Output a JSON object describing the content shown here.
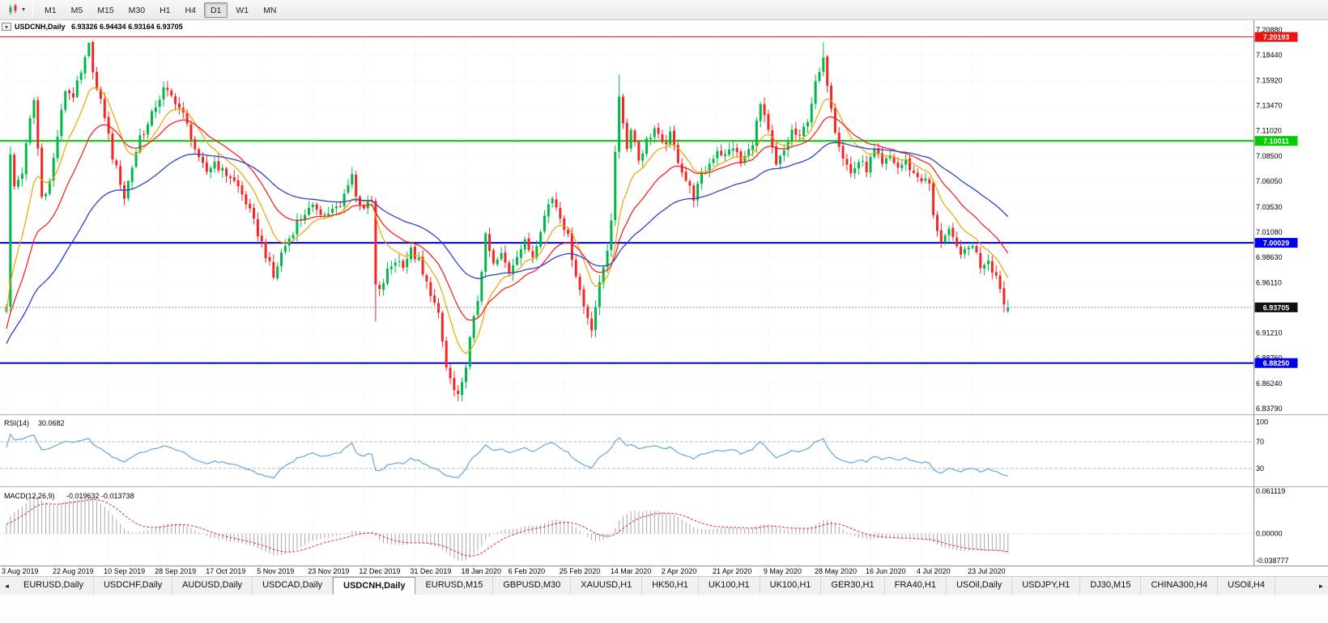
{
  "toolbar": {
    "caret": "▾",
    "timeframes": [
      {
        "label": "M1",
        "active": false
      },
      {
        "label": "M5",
        "active": false
      },
      {
        "label": "M15",
        "active": false
      },
      {
        "label": "M30",
        "active": false
      },
      {
        "label": "H1",
        "active": false
      },
      {
        "label": "H4",
        "active": false
      },
      {
        "label": "D1",
        "active": true
      },
      {
        "label": "W1",
        "active": false
      },
      {
        "label": "MN",
        "active": false
      }
    ]
  },
  "chart_header": {
    "collapse_glyph": "▼",
    "symbol": "USDCNH,Daily",
    "ohlc": "6.93326 6.94434 6.93164 6.93705"
  },
  "chart_data": {
    "type": "candlestick",
    "symbol": "USDCNH",
    "timeframe": "Daily",
    "last_open": "6.93326",
    "last_high": "6.94434",
    "last_low": "6.93164",
    "last_close": "6.93705",
    "y_axis_top": 7.2088,
    "y_axis_bottom": 6.8379,
    "price_axis_labels": [
      "7.20880",
      "7.18440",
      "7.15920",
      "7.13470",
      "7.11020",
      "7.08500",
      "7.06050",
      "7.03530",
      "7.01080",
      "6.98630",
      "6.96110",
      "6.93660",
      "6.91210",
      "6.88760",
      "6.86240",
      "6.83790"
    ],
    "date_labels": [
      "3 Aug 2019",
      "22 Aug 2019",
      "10 Sep 2019",
      "28 Sep 2019",
      "17 Oct 2019",
      "5 Nov 2019",
      "23 Nov 2019",
      "12 Dec 2019",
      "31 Dec 2019",
      "18 Jan 2020",
      "6 Feb 2020",
      "25 Feb 2020",
      "14 Mar 2020",
      "2 Apr 2020",
      "21 Apr 2020",
      "9 May 2020",
      "28 May 2020",
      "16 Jun 2020",
      "4 Jul 2020",
      "23 Jul 2020"
    ],
    "levels": [
      {
        "label": "7.20193",
        "value": 7.20193,
        "color": "#ee1111",
        "width": 1
      },
      {
        "label": "7.10011",
        "value": 7.10011,
        "color": "#00cc00",
        "width": 2
      },
      {
        "label": "7.00029",
        "value": 7.00029,
        "color": "#0000ee",
        "width": 2
      },
      {
        "label": "6.88250",
        "value": 6.8825,
        "color": "#0000ee",
        "width": 2
      }
    ],
    "current_price": {
      "label": "6.93705",
      "value": 6.93705,
      "line_color": "#9a9a9a",
      "box_color": "#101010"
    },
    "candle_count": 256,
    "colors": {
      "up": "#00b84a",
      "up_stroke": "#009a3c",
      "down": "#f42525",
      "down_stroke": "#d41f1f"
    },
    "moving_averages": [
      {
        "name": "fast",
        "period": 10,
        "color": "#f0a200"
      },
      {
        "name": "mid",
        "period": 21,
        "color": "#ff1414"
      },
      {
        "name": "slow",
        "period": 48,
        "color": "#2e43c8"
      }
    ],
    "close_anchors": [
      [
        0,
        6.94
      ],
      [
        1,
        7.085
      ],
      [
        2,
        7.055
      ],
      [
        4,
        7.07
      ],
      [
        6,
        7.12
      ],
      [
        7,
        7.14
      ],
      [
        9,
        7.045
      ],
      [
        11,
        7.06
      ],
      [
        13,
        7.105
      ],
      [
        15,
        7.15
      ],
      [
        17,
        7.145
      ],
      [
        19,
        7.165
      ],
      [
        21,
        7.193
      ],
      [
        23,
        7.15
      ],
      [
        25,
        7.125
      ],
      [
        27,
        7.085
      ],
      [
        29,
        7.06
      ],
      [
        30,
        7.045
      ],
      [
        32,
        7.075
      ],
      [
        34,
        7.105
      ],
      [
        36,
        7.115
      ],
      [
        38,
        7.135
      ],
      [
        40,
        7.15
      ],
      [
        43,
        7.14
      ],
      [
        45,
        7.125
      ],
      [
        47,
        7.105
      ],
      [
        49,
        7.08
      ],
      [
        51,
        7.07
      ],
      [
        53,
        7.08
      ],
      [
        55,
        7.07
      ],
      [
        57,
        7.065
      ],
      [
        59,
        7.055
      ],
      [
        61,
        7.04
      ],
      [
        63,
        7.02
      ],
      [
        65,
        7.0
      ],
      [
        67,
        6.978
      ],
      [
        68,
        6.966
      ],
      [
        70,
        6.99
      ],
      [
        72,
        7.005
      ],
      [
        74,
        7.02
      ],
      [
        76,
        7.03
      ],
      [
        79,
        7.035
      ],
      [
        81,
        7.028
      ],
      [
        83,
        7.032
      ],
      [
        85,
        7.035
      ],
      [
        87,
        7.06
      ],
      [
        88,
        7.068
      ],
      [
        89,
        7.045
      ],
      [
        91,
        7.036
      ],
      [
        93,
        7.04
      ],
      [
        94,
        6.958
      ],
      [
        95,
        6.952
      ],
      [
        97,
        6.972
      ],
      [
        99,
        6.983
      ],
      [
        101,
        6.98
      ],
      [
        103,
        6.992
      ],
      [
        105,
        6.982
      ],
      [
        106,
        6.968
      ],
      [
        108,
        6.952
      ],
      [
        110,
        6.928
      ],
      [
        112,
        6.878
      ],
      [
        114,
        6.855
      ],
      [
        115,
        6.848
      ],
      [
        116,
        6.86
      ],
      [
        118,
        6.905
      ],
      [
        120,
        6.945
      ],
      [
        122,
        7.005
      ],
      [
        124,
        6.978
      ],
      [
        126,
        6.988
      ],
      [
        128,
        6.972
      ],
      [
        130,
        6.99
      ],
      [
        132,
        7.0
      ],
      [
        134,
        6.988
      ],
      [
        136,
        7.015
      ],
      [
        138,
        7.038
      ],
      [
        139,
        7.045
      ],
      [
        141,
        7.028
      ],
      [
        143,
        7.005
      ],
      [
        145,
        6.97
      ],
      [
        147,
        6.938
      ],
      [
        149,
        6.918
      ],
      [
        151,
        6.958
      ],
      [
        153,
        6.995
      ],
      [
        154,
        7.025
      ],
      [
        155,
        7.085
      ],
      [
        156,
        7.145
      ],
      [
        157,
        7.12
      ],
      [
        158,
        7.092
      ],
      [
        159,
        7.115
      ],
      [
        161,
        7.082
      ],
      [
        163,
        7.1
      ],
      [
        165,
        7.112
      ],
      [
        167,
        7.095
      ],
      [
        169,
        7.105
      ],
      [
        171,
        7.082
      ],
      [
        173,
        7.062
      ],
      [
        175,
        7.045
      ],
      [
        177,
        7.065
      ],
      [
        179,
        7.078
      ],
      [
        181,
        7.092
      ],
      [
        183,
        7.085
      ],
      [
        185,
        7.095
      ],
      [
        187,
        7.078
      ],
      [
        189,
        7.09
      ],
      [
        190,
        7.1
      ],
      [
        192,
        7.135
      ],
      [
        194,
        7.108
      ],
      [
        196,
        7.075
      ],
      [
        198,
        7.09
      ],
      [
        200,
        7.11
      ],
      [
        202,
        7.102
      ],
      [
        204,
        7.122
      ],
      [
        206,
        7.155
      ],
      [
        208,
        7.178
      ],
      [
        209,
        7.158
      ],
      [
        210,
        7.135
      ],
      [
        211,
        7.112
      ],
      [
        213,
        7.085
      ],
      [
        215,
        7.068
      ],
      [
        217,
        7.08
      ],
      [
        219,
        7.073
      ],
      [
        221,
        7.09
      ],
      [
        223,
        7.075
      ],
      [
        225,
        7.085
      ],
      [
        227,
        7.074
      ],
      [
        229,
        7.08
      ],
      [
        231,
        7.068
      ],
      [
        233,
        7.063
      ],
      [
        235,
        7.058
      ],
      [
        236,
        7.025
      ],
      [
        238,
        7.003
      ],
      [
        240,
        7.01
      ],
      [
        242,
        6.995
      ],
      [
        244,
        6.99
      ],
      [
        246,
        7.0
      ],
      [
        248,
        6.978
      ],
      [
        250,
        6.985
      ],
      [
        251,
        6.975
      ],
      [
        252,
        6.968
      ],
      [
        253,
        6.955
      ],
      [
        254,
        6.94
      ],
      [
        255,
        6.93705
      ]
    ],
    "special_candles": {
      "21": {
        "h": 7.1965
      },
      "94": {
        "l": 6.9232
      },
      "115": {
        "l": 6.8452
      },
      "156": {
        "h": 7.1651
      },
      "208": {
        "h": 7.1965
      },
      "254": {
        "l": 6.932
      },
      "255": {
        "o": 6.93326,
        "h": 6.94434,
        "l": 6.93164,
        "c": 6.93705
      }
    }
  },
  "rsi": {
    "title": "RSI(14)",
    "value": "30.0682",
    "axis_labels": [
      "100",
      "70",
      "30"
    ],
    "levels": [
      70,
      30
    ],
    "color": "#53a2dd"
  },
  "macd": {
    "title": "MACD(12,26,9)",
    "values": "-0.019632 -0.013738",
    "axis_labels": [
      "0.061119",
      "0.00000",
      "-0.038777"
    ],
    "histogram_color": "#a8a8a8",
    "signal_color": "#e03131"
  },
  "tabs": {
    "left_arrow": "◄",
    "right_arrow": "►",
    "items": [
      {
        "label": "EURUSD,Daily",
        "active": false
      },
      {
        "label": "USDCHF,Daily",
        "active": false
      },
      {
        "label": "AUDUSD,Daily",
        "active": false
      },
      {
        "label": "USDCAD,Daily",
        "active": false
      },
      {
        "label": "USDCNH,Daily",
        "active": true
      },
      {
        "label": "EURUSD,M15",
        "active": false
      },
      {
        "label": "GBPUSD,M30",
        "active": false
      },
      {
        "label": "XAUUSD,H1",
        "active": false
      },
      {
        "label": "HK50,H1",
        "active": false
      },
      {
        "label": "UK100,H1",
        "active": false
      },
      {
        "label": "UK100,H1",
        "active": false
      },
      {
        "label": "GER30,H1",
        "active": false
      },
      {
        "label": "FRA40,H1",
        "active": false
      },
      {
        "label": "USOil,Daily",
        "active": false
      },
      {
        "label": "USDJPY,H1",
        "active": false
      },
      {
        "label": "DJ30,M15",
        "active": false
      },
      {
        "label": "CHINA300,H4",
        "active": false
      },
      {
        "label": "USOil,H4",
        "active": false
      }
    ]
  }
}
